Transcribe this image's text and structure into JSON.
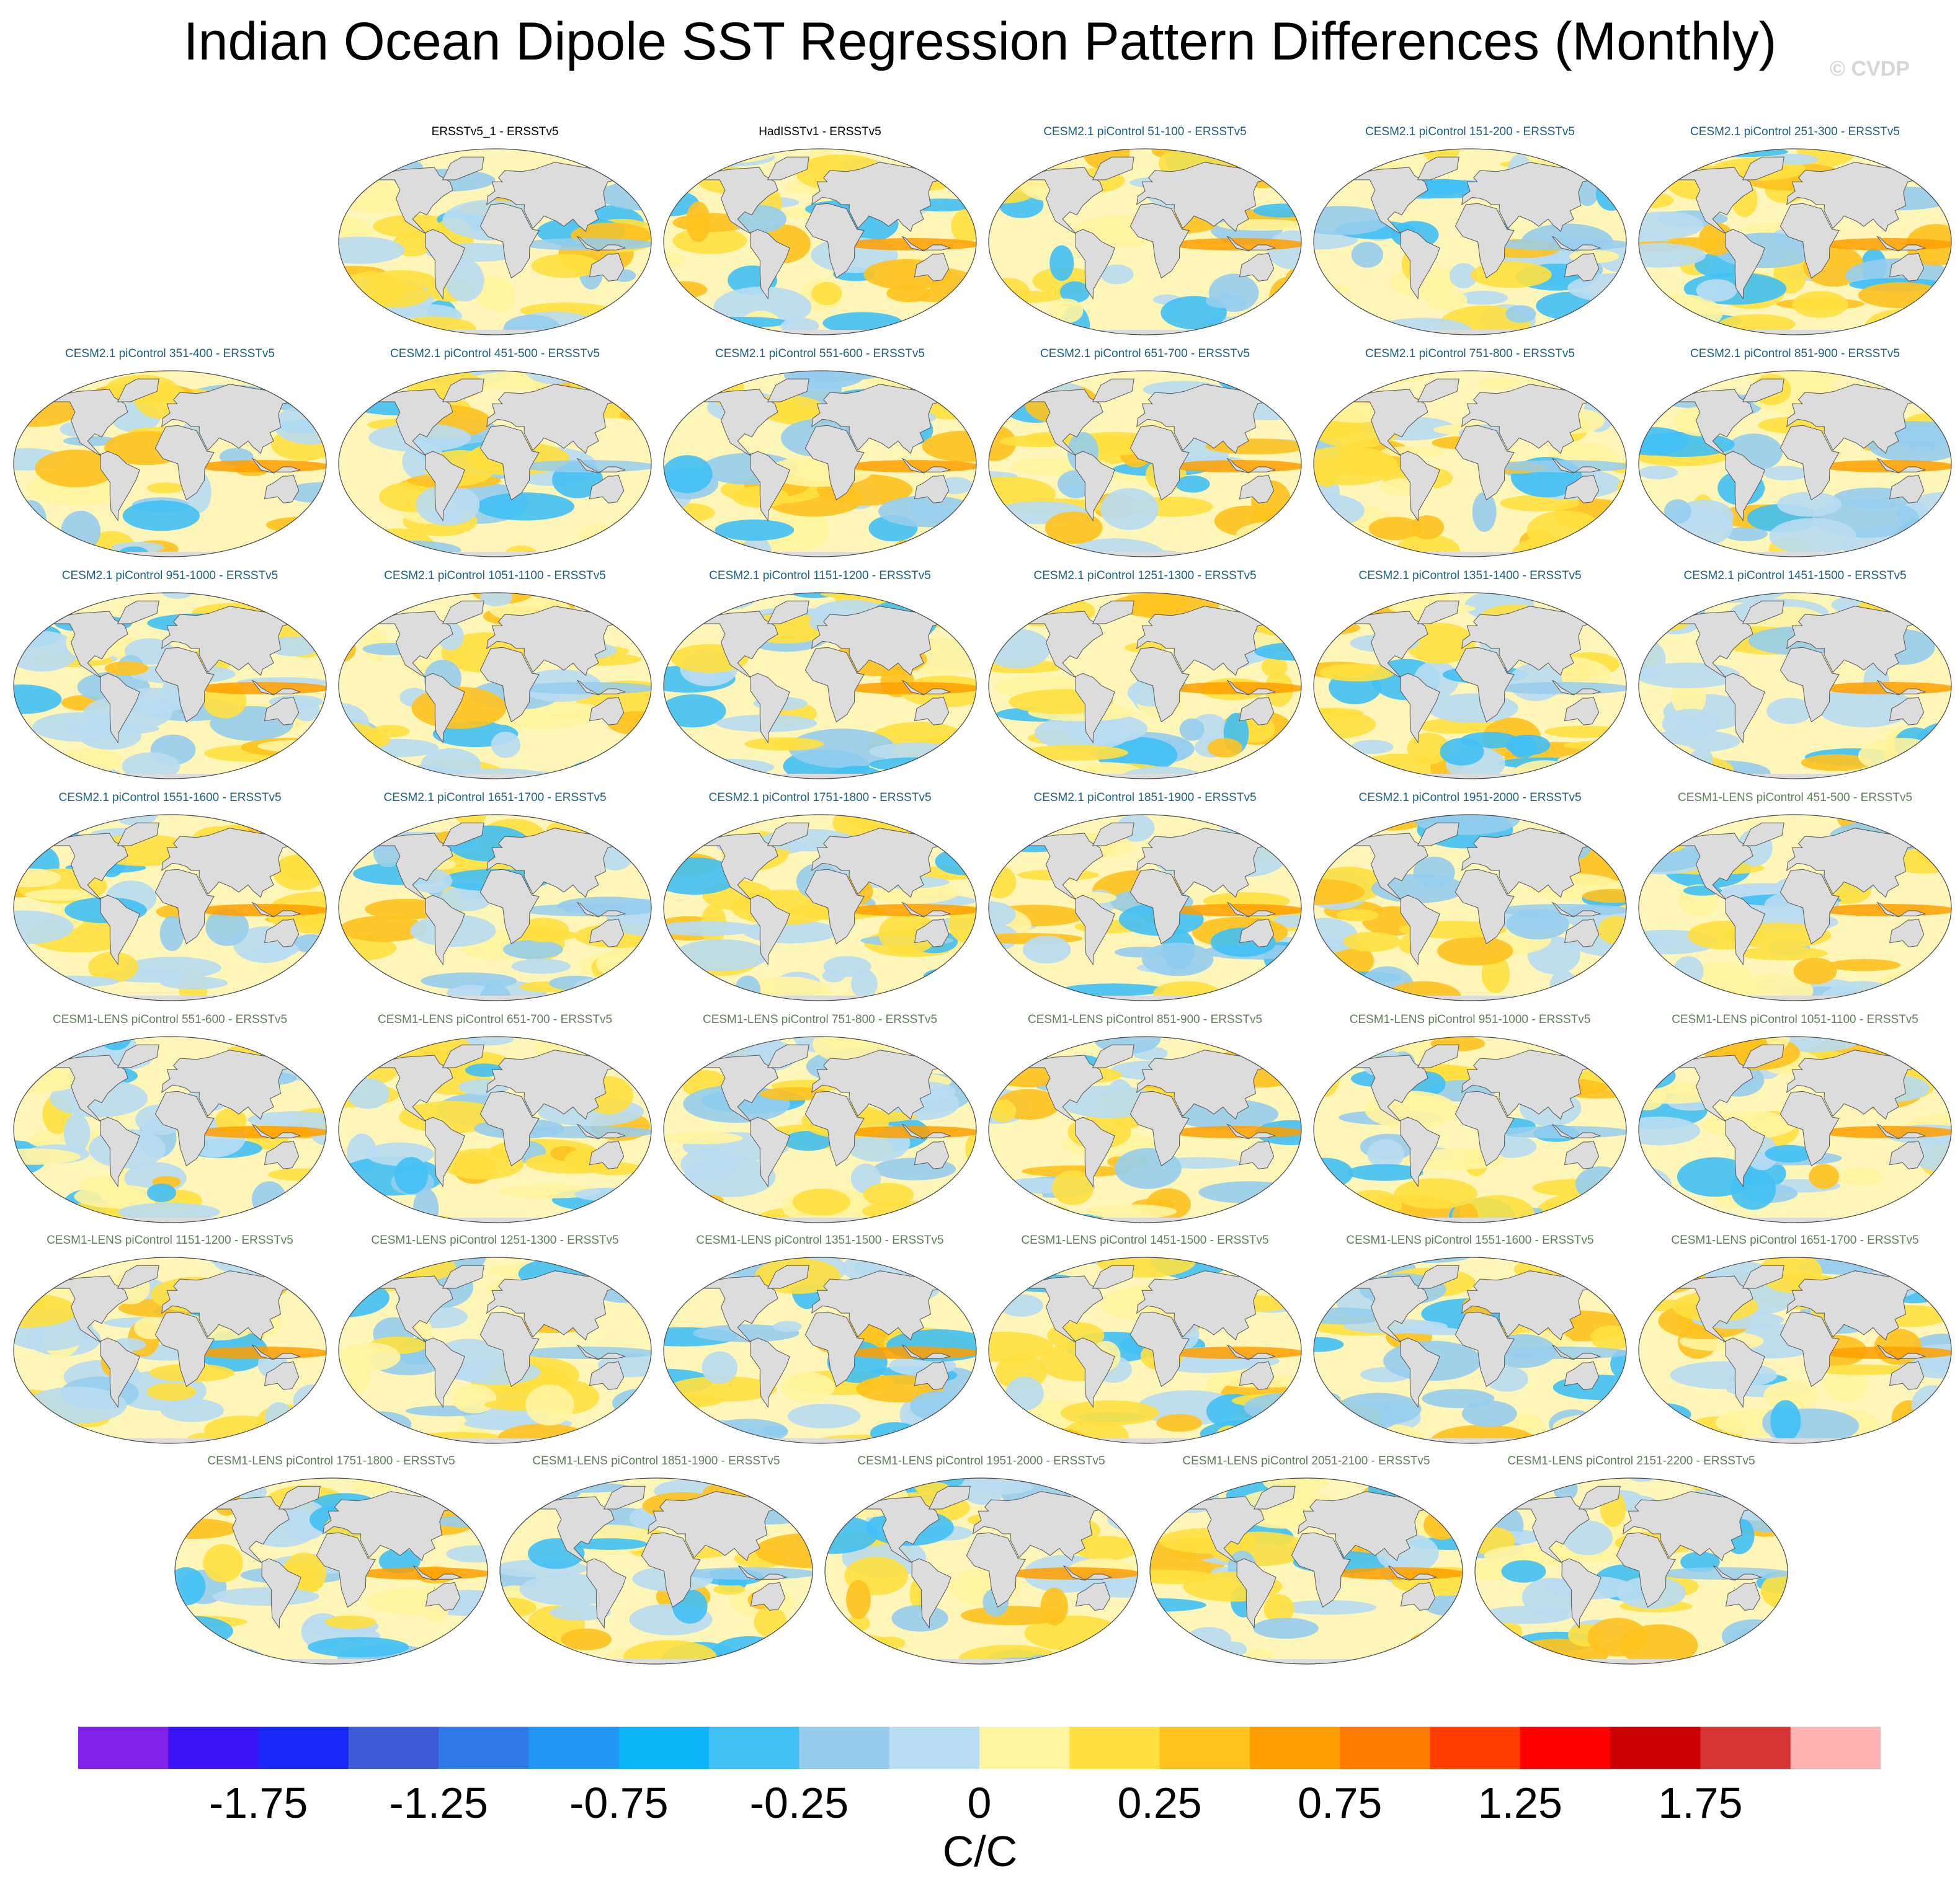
{
  "title": "Indian Ocean Dipole SST Regression Pattern Differences (Monthly)",
  "credit": "© CVDP",
  "panels": [
    {
      "label": "ERSSTv5_1 - ERSSTv5",
      "group": "obs"
    },
    {
      "label": "HadISSTv1 - ERSSTv5",
      "group": "obs"
    },
    {
      "label": "CESM2.1 piControl 51-100 - ERSSTv5",
      "group": "cesm2"
    },
    {
      "label": "CESM2.1 piControl 151-200 - ERSSTv5",
      "group": "cesm2"
    },
    {
      "label": "CESM2.1 piControl 251-300 - ERSSTv5",
      "group": "cesm2"
    },
    {
      "label": "CESM2.1 piControl 351-400 - ERSSTv5",
      "group": "cesm2"
    },
    {
      "label": "CESM2.1 piControl 451-500 - ERSSTv5",
      "group": "cesm2"
    },
    {
      "label": "CESM2.1 piControl 551-600 - ERSSTv5",
      "group": "cesm2"
    },
    {
      "label": "CESM2.1 piControl 651-700 - ERSSTv5",
      "group": "cesm2"
    },
    {
      "label": "CESM2.1 piControl 751-800 - ERSSTv5",
      "group": "cesm2"
    },
    {
      "label": "CESM2.1 piControl 851-900 - ERSSTv5",
      "group": "cesm2"
    },
    {
      "label": "CESM2.1 piControl 951-1000 - ERSSTv5",
      "group": "cesm2"
    },
    {
      "label": "CESM2.1 piControl 1051-1100 - ERSSTv5",
      "group": "cesm2"
    },
    {
      "label": "CESM2.1 piControl 1151-1200 - ERSSTv5",
      "group": "cesm2"
    },
    {
      "label": "CESM2.1 piControl 1251-1300 - ERSSTv5",
      "group": "cesm2"
    },
    {
      "label": "CESM2.1 piControl 1351-1400 - ERSSTv5",
      "group": "cesm2"
    },
    {
      "label": "CESM2.1 piControl 1451-1500 - ERSSTv5",
      "group": "cesm2"
    },
    {
      "label": "CESM2.1 piControl 1551-1600 - ERSSTv5",
      "group": "cesm2"
    },
    {
      "label": "CESM2.1 piControl 1651-1700 - ERSSTv5",
      "group": "cesm2"
    },
    {
      "label": "CESM2.1 piControl 1751-1800 - ERSSTv5",
      "group": "cesm2"
    },
    {
      "label": "CESM2.1 piControl 1851-1900 - ERSSTv5",
      "group": "cesm2"
    },
    {
      "label": "CESM2.1 piControl 1951-2000 - ERSSTv5",
      "group": "cesm2"
    },
    {
      "label": "CESM1-LENS piControl 451-500 - ERSSTv5",
      "group": "lens"
    },
    {
      "label": "CESM1-LENS piControl 551-600 - ERSSTv5",
      "group": "lens"
    },
    {
      "label": "CESM1-LENS piControl 651-700 - ERSSTv5",
      "group": "lens"
    },
    {
      "label": "CESM1-LENS piControl 751-800 - ERSSTv5",
      "group": "lens"
    },
    {
      "label": "CESM1-LENS piControl 851-900 - ERSSTv5",
      "group": "lens"
    },
    {
      "label": "CESM1-LENS piControl 951-1000 - ERSSTv5",
      "group": "lens"
    },
    {
      "label": "CESM1-LENS piControl 1051-1100 - ERSSTv5",
      "group": "lens"
    },
    {
      "label": "CESM1-LENS piControl 1151-1200 - ERSSTv5",
      "group": "lens"
    },
    {
      "label": "CESM1-LENS piControl 1251-1300 - ERSSTv5",
      "group": "lens"
    },
    {
      "label": "CESM1-LENS piControl 1351-1500 - ERSSTv5",
      "group": "lens"
    },
    {
      "label": "CESM1-LENS piControl 1451-1500 - ERSSTv5",
      "group": "lens"
    },
    {
      "label": "CESM1-LENS piControl 1551-1600 - ERSSTv5",
      "group": "lens"
    },
    {
      "label": "CESM1-LENS piControl 1651-1700 - ERSSTv5",
      "group": "lens"
    },
    {
      "label": "CESM1-LENS piControl 1751-1800 - ERSSTv5",
      "group": "lens"
    },
    {
      "label": "CESM1-LENS piControl 1851-1900 - ERSSTv5",
      "group": "lens"
    },
    {
      "label": "CESM1-LENS piControl 1951-2000 - ERSSTv5",
      "group": "lens"
    },
    {
      "label": "CESM1-LENS piControl 2051-2100 - ERSSTv5",
      "group": "lens"
    },
    {
      "label": "CESM1-LENS piControl 2151-2200 - ERSSTv5",
      "group": "lens"
    }
  ],
  "colorbar": {
    "colors": [
      "#8122e8",
      "#3b14f5",
      "#1a28f5",
      "#3e5ad6",
      "#2f7ae8",
      "#2196f3",
      "#0db4f7",
      "#41c0f5",
      "#96cded",
      "#b8dcf2",
      "#fff4a0",
      "#ffe040",
      "#ffc21f",
      "#ff9f00",
      "#ff7a00",
      "#ff3d00",
      "#ff0000",
      "#cc0000",
      "#d63535",
      "#ffb3b3"
    ],
    "tick_labels": [
      "-1.75",
      "-1.25",
      "-0.75",
      "-0.25",
      "0",
      "0.25",
      "0.75",
      "1.25",
      "1.75"
    ],
    "units": "C/C"
  },
  "palette": {
    "land": "#dcdcdc",
    "coast": "#555555",
    "neutral": "#fdf6b8"
  }
}
